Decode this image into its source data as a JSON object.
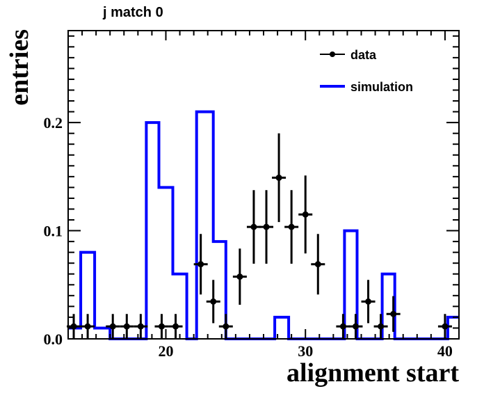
{
  "chart_data": {
    "type": "histogram",
    "title": "j match 0",
    "xlabel": "alignment start",
    "ylabel": "entries",
    "xlim": [
      13,
      41
    ],
    "ylim": [
      0,
      0.285
    ],
    "xticks": [
      20,
      30,
      40
    ],
    "xtick_labels": [
      "20",
      "30",
      "40"
    ],
    "yticks": [
      0,
      0.1,
      0.2
    ],
    "ytick_labels": [
      "0.0",
      "0.1",
      "0.2"
    ],
    "grid": false,
    "legend_position": "top-right",
    "colors": {
      "data": "#000000",
      "simulation": "#0000ff"
    },
    "series": [
      {
        "name": "data",
        "kind": "points-with-errors",
        "x": [
          13.4,
          14.4,
          16.2,
          17.2,
          18.2,
          19.7,
          20.7,
          22.5,
          23.4,
          24.3,
          25.3,
          26.3,
          27.2,
          28.1,
          29.0,
          30.0,
          30.9,
          32.7,
          33.6,
          34.5,
          35.4,
          36.3,
          40.0
        ],
        "y": [
          0.0115,
          0.0115,
          0.0115,
          0.0115,
          0.0115,
          0.0115,
          0.0115,
          0.069,
          0.0345,
          0.0115,
          0.0575,
          0.1035,
          0.1035,
          0.149,
          0.1035,
          0.115,
          0.069,
          0.0115,
          0.0115,
          0.0345,
          0.0115,
          0.023,
          0.0115
        ],
        "err": [
          0.0115,
          0.0115,
          0.0115,
          0.0115,
          0.0115,
          0.0115,
          0.0115,
          0.028,
          0.02,
          0.0115,
          0.026,
          0.034,
          0.034,
          0.041,
          0.034,
          0.036,
          0.028,
          0.0115,
          0.0115,
          0.02,
          0.0115,
          0.0165,
          0.0115
        ]
      },
      {
        "name": "simulation",
        "kind": "step",
        "bin_edges": [
          13,
          13.9,
          14.9,
          16.0,
          18.6,
          19.5,
          20.5,
          21.5,
          22.2,
          23.4,
          24.3,
          27.8,
          28.8,
          32.8,
          33.7,
          35.5,
          36.4,
          40.2,
          41
        ],
        "values": [
          0.01,
          0.08,
          0.01,
          0.0,
          0.2,
          0.14,
          0.06,
          0.0,
          0.21,
          0.09,
          0.0,
          0.02,
          0.0,
          0.1,
          0.0,
          0.06,
          0.0,
          0.02
        ]
      }
    ]
  }
}
